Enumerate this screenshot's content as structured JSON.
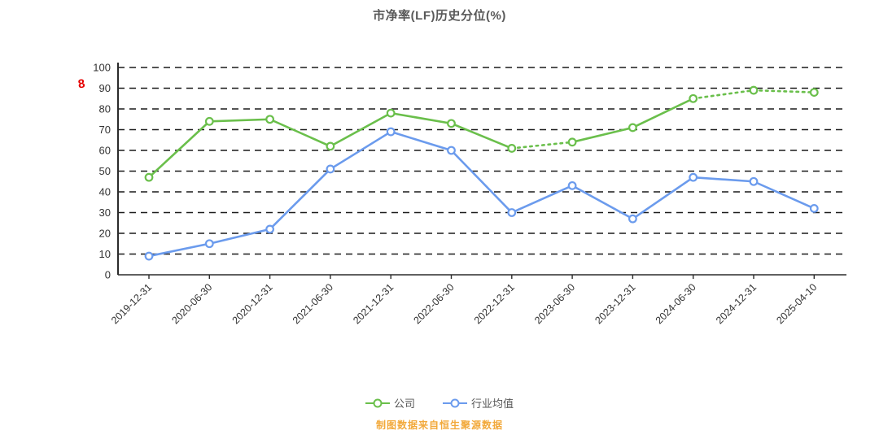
{
  "title": "市净率(LF)历史分位(%)",
  "red_axis_note": "8",
  "footer": "制图数据来自恒生聚源数据",
  "legend": [
    {
      "label": "公司",
      "color": "#6abf4b"
    },
    {
      "label": "行业均值",
      "color": "#6b9bed"
    }
  ],
  "chart_data": {
    "type": "line",
    "title": "市净率(LF)历史分位(%)",
    "categories": [
      "2019-12-31",
      "2020-06-30",
      "2020-12-31",
      "2021-06-30",
      "2021-12-31",
      "2022-06-30",
      "2022-12-31",
      "2023-06-30",
      "2023-12-31",
      "2024-06-30",
      "2024-12-31",
      "2025-04-10"
    ],
    "series": [
      {
        "name": "公司",
        "color": "#6abf4b",
        "values": [
          47,
          74,
          75,
          62,
          78,
          73,
          61,
          64,
          71,
          85,
          89,
          88
        ],
        "dotted_segments": [
          6,
          9,
          10
        ]
      },
      {
        "name": "行业均值",
        "color": "#6b9bed",
        "values": [
          9,
          15,
          22,
          51,
          69,
          60,
          30,
          43,
          27,
          47,
          45,
          32
        ],
        "dotted_segments": []
      }
    ],
    "ylim": [
      0,
      100
    ],
    "y_ticks": [
      0,
      10,
      20,
      30,
      40,
      50,
      60,
      70,
      80,
      90,
      100
    ],
    "grid": "dashed-horizontal",
    "legend_position": "bottom",
    "xlabel": "",
    "ylabel": ""
  }
}
